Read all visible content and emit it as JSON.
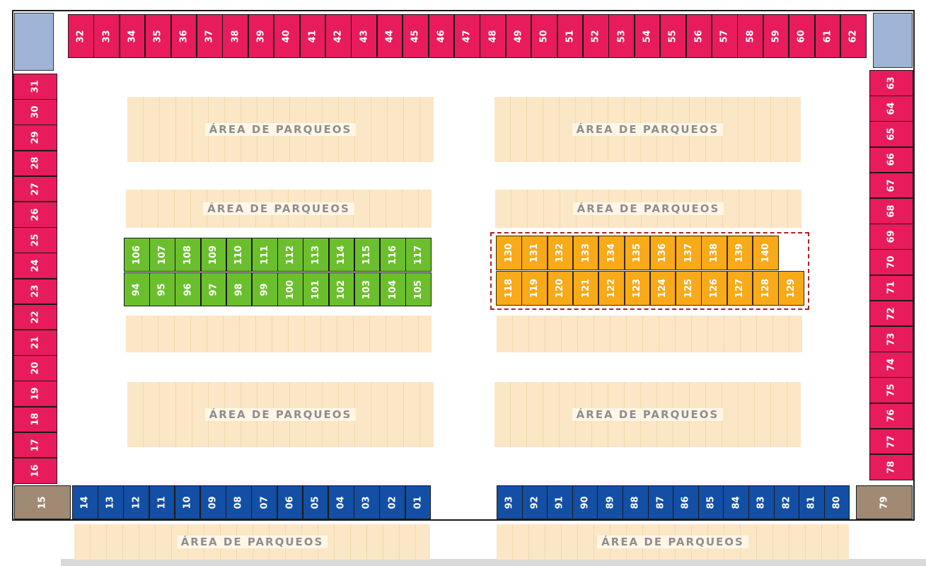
{
  "parking_label": "ÁREA DE PARQUEOS",
  "colors": {
    "pink": "#e81b5c",
    "blue": "#134fa4",
    "green": "#6cbf2c",
    "orange": "#f8aa19",
    "brown": "#a08a74",
    "parking": "#fbe7c6"
  },
  "lots": {
    "top": [
      "32",
      "33",
      "34",
      "35",
      "36",
      "37",
      "38",
      "39",
      "40",
      "41",
      "42",
      "43",
      "44",
      "45",
      "46",
      "47",
      "48",
      "49",
      "50",
      "51",
      "52",
      "53",
      "54",
      "55",
      "56",
      "57",
      "58",
      "59",
      "60",
      "61",
      "62"
    ],
    "left": [
      "31",
      "30",
      "29",
      "28",
      "27",
      "26",
      "25",
      "24",
      "23",
      "22",
      "21",
      "20",
      "19",
      "18",
      "17",
      "16"
    ],
    "right": [
      "63",
      "64",
      "65",
      "66",
      "67",
      "68",
      "69",
      "70",
      "71",
      "72",
      "73",
      "74",
      "75",
      "76",
      "77",
      "78"
    ],
    "bottom_left": [
      "14",
      "13",
      "12",
      "11",
      "10",
      "09",
      "08",
      "07",
      "06",
      "05",
      "04",
      "03",
      "02",
      "01"
    ],
    "bottom_right": [
      "93",
      "92",
      "91",
      "90",
      "89",
      "88",
      "87",
      "86",
      "85",
      "84",
      "83",
      "82",
      "81",
      "80"
    ],
    "corner_left": "15",
    "corner_right": "79",
    "green_top": [
      "106",
      "107",
      "108",
      "109",
      "110",
      "111",
      "112",
      "113",
      "114",
      "115",
      "116",
      "117"
    ],
    "green_bottom": [
      "94",
      "95",
      "96",
      "97",
      "98",
      "99",
      "100",
      "101",
      "102",
      "103",
      "104",
      "105"
    ],
    "orange_top": [
      "130",
      "131",
      "132",
      "133",
      "134",
      "135",
      "136",
      "137",
      "138",
      "139",
      "140"
    ],
    "orange_bottom": [
      "118",
      "119",
      "120",
      "121",
      "122",
      "123",
      "124",
      "125",
      "126",
      "127",
      "128",
      "129"
    ]
  }
}
